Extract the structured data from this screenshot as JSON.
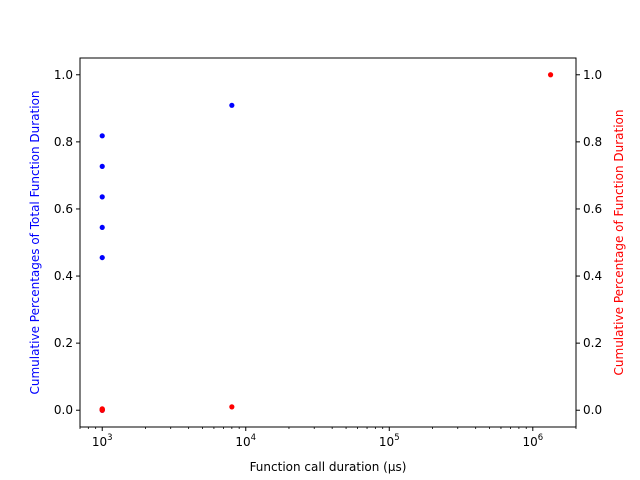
{
  "chart_data": {
    "type": "scatter",
    "title": "",
    "xlabel": "Function call duration (μs)",
    "ylabel_left": "Cumulative Percentages of Total Function Duration",
    "ylabel_right": "Cumulative Percentage of Function Duration",
    "xscale": "log",
    "xlim": [
      700,
      2000000
    ],
    "ylim_left": [
      -0.05,
      1.05
    ],
    "ylim_right": [
      -0.05,
      1.05
    ],
    "grid": false,
    "legend": "none",
    "x_ticks": [
      {
        "value": 1000,
        "base": "10",
        "exp": "3"
      },
      {
        "value": 10000,
        "base": "10",
        "exp": "4"
      },
      {
        "value": 100000,
        "base": "10",
        "exp": "5"
      },
      {
        "value": 1000000,
        "base": "10",
        "exp": "6"
      }
    ],
    "y_ticks_left": [
      "0.0",
      "0.2",
      "0.4",
      "0.6",
      "0.8",
      "1.0"
    ],
    "y_ticks_right": [
      "0.0",
      "0.2",
      "0.4",
      "0.6",
      "0.8",
      "1.0"
    ],
    "series": [
      {
        "axis": "left",
        "color": "#0000ff",
        "points": [
          {
            "x": 1000,
            "y": 0.0
          },
          {
            "x": 1000,
            "y": 0.455
          },
          {
            "x": 1000,
            "y": 0.545
          },
          {
            "x": 1000,
            "y": 0.636
          },
          {
            "x": 1000,
            "y": 0.727
          },
          {
            "x": 1000,
            "y": 0.818
          },
          {
            "x": 8000,
            "y": 0.909
          }
        ]
      },
      {
        "axis": "right",
        "color": "#ff0000",
        "points": [
          {
            "x": 1000,
            "y": 0.0
          },
          {
            "x": 1000,
            "y": 0.001
          },
          {
            "x": 1000,
            "y": 0.002
          },
          {
            "x": 1000,
            "y": 0.003
          },
          {
            "x": 1000,
            "y": 0.004
          },
          {
            "x": 8000,
            "y": 0.01
          },
          {
            "x": 1330000,
            "y": 1.0
          }
        ]
      }
    ]
  }
}
